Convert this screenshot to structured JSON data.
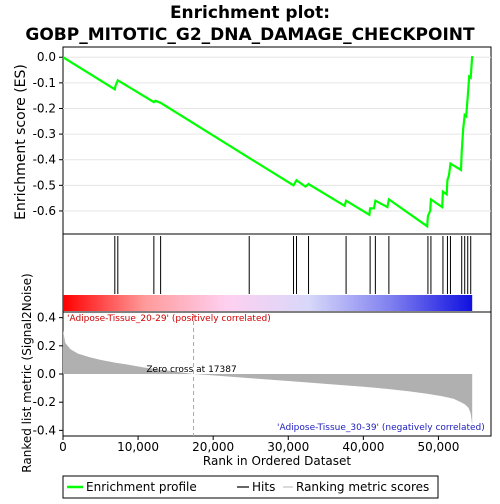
{
  "chart_data": {
    "type": "line",
    "title_line1": "Enrichment plot:",
    "title_line2": "GOBP_MITOTIC_G2_DNA_DAMAGE_CHECKPOINT",
    "es_panel": {
      "ylabel": "Enrichment score (ES)",
      "ylim": [
        -0.69,
        0.04
      ],
      "yticks": [
        0.0,
        -0.1,
        -0.2,
        -0.3,
        -0.4,
        -0.5,
        -0.6
      ],
      "ytick_labels": [
        "0.0",
        "-0.1",
        "-0.2",
        "-0.3",
        "-0.4",
        "-0.5",
        "-0.6"
      ],
      "series": [
        {
          "name": "Enrichment profile",
          "color": "#00ff00",
          "x": [
            0,
            6900,
            7000,
            7300,
            12100,
            12300,
            13000,
            24800,
            30700,
            30900,
            31100,
            32300,
            32700,
            37500,
            37700,
            40800,
            40900,
            41400,
            41600,
            43200,
            43400,
            48500,
            48600,
            48900,
            49000,
            50500,
            50600,
            51100,
            51200,
            51400,
            51600,
            53000,
            53100,
            53300,
            53500,
            53700,
            53900,
            54100,
            54300,
            54500
          ],
          "y": [
            0.0,
            -0.125,
            -0.11,
            -0.09,
            -0.175,
            -0.17,
            -0.178,
            -0.393,
            -0.5,
            -0.49,
            -0.48,
            -0.505,
            -0.495,
            -0.58,
            -0.56,
            -0.615,
            -0.59,
            -0.59,
            -0.56,
            -0.585,
            -0.555,
            -0.66,
            -0.62,
            -0.6,
            -0.555,
            -0.585,
            -0.525,
            -0.535,
            -0.48,
            -0.46,
            -0.415,
            -0.44,
            -0.37,
            -0.28,
            -0.225,
            -0.23,
            -0.155,
            -0.075,
            -0.08,
            0.005
          ]
        }
      ]
    },
    "hits_panel": {
      "hits_x": [
        6900,
        7300,
        12100,
        13000,
        24800,
        30700,
        31100,
        32700,
        37700,
        40900,
        41600,
        43400,
        48600,
        49000,
        50600,
        51200,
        51600,
        53100,
        53500,
        53900,
        54300
      ],
      "gradient_stops": [
        "#ff0000",
        "#ff9a9a",
        "#ffd0f0",
        "#d8d8fa",
        "#8080f0",
        "#1010e0"
      ]
    },
    "metric_panel": {
      "ylabel": "Ranked list metric (Signal2Noise)",
      "xlabel": "Rank in Ordered Dataset",
      "ylim": [
        -0.44,
        0.44
      ],
      "yticks": [
        0.4,
        0.2,
        0.0,
        -0.2,
        -0.4
      ],
      "ytick_labels": [
        "0.4",
        "0.2",
        "0.0",
        "-0.2",
        "-0.4"
      ],
      "xlim": [
        0,
        57000
      ],
      "xticks": [
        0,
        10000,
        20000,
        30000,
        40000,
        50000
      ],
      "xtick_labels": [
        "0",
        "10,000",
        "20,000",
        "30,000",
        "40,000",
        "50,000"
      ],
      "max_rank": 54500,
      "zero_cross_rank": 17387,
      "zero_cross_label": "Zero cross at 17387",
      "positive_label": "'Adipose-Tissue_20-29' (positively correlated)",
      "negative_label": "'Adipose-Tissue_30-39' (negatively correlated)",
      "curve_x": [
        0,
        300,
        1000,
        2000,
        3500,
        5000,
        7000,
        9000,
        11000,
        13000,
        15000,
        17387,
        20000,
        25000,
        30000,
        35000,
        40000,
        43000,
        46000,
        48500,
        50500,
        52000,
        53000,
        53500,
        54000,
        54300,
        54500
      ],
      "curve_y": [
        0.31,
        0.22,
        0.175,
        0.145,
        0.12,
        0.1,
        0.08,
        0.063,
        0.045,
        0.03,
        0.017,
        0.0,
        -0.01,
        -0.03,
        -0.05,
        -0.07,
        -0.09,
        -0.105,
        -0.123,
        -0.14,
        -0.158,
        -0.175,
        -0.2,
        -0.215,
        -0.24,
        -0.28,
        -0.36
      ],
      "fill_color": "#b0b0b0"
    },
    "legend": [
      {
        "label": "Enrichment profile",
        "color": "#00ff00"
      },
      {
        "label": "Hits",
        "color": "#000000"
      },
      {
        "label": "Ranking metric scores",
        "color": "#c0c0c0"
      }
    ]
  }
}
